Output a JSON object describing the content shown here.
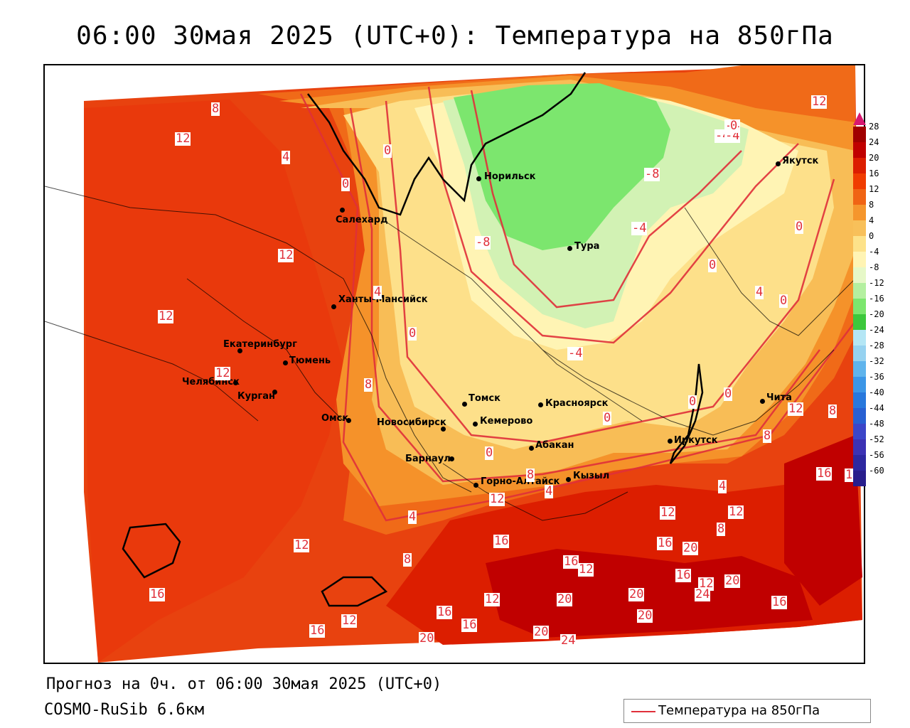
{
  "title": "06:00 30мая 2025 (UTC+0): Температура на 850гПа",
  "footer": {
    "forecast": "Прогноз на 0ч. от 06:00 30мая 2025 (UTC+0)",
    "model": "COSMO-RuSib 6.6км"
  },
  "legend": {
    "label": "Температура на 850гПа",
    "line_color": "#e0303a"
  },
  "colorbar": {
    "ticks": [
      "28",
      "24",
      "20",
      "16",
      "12",
      "8",
      "4",
      "0",
      "-4",
      "-8",
      "-12",
      "-16",
      "-20",
      "-24",
      "-28",
      "-32",
      "-36",
      "-40",
      "-44",
      "-48",
      "-52",
      "-56",
      "-60"
    ],
    "colors": [
      "#a00000",
      "#c00000",
      "#dc1e00",
      "#f03c00",
      "#f06414",
      "#f5962d",
      "#f8c05a",
      "#fde28a",
      "#fff4b4",
      "#e6f8c8",
      "#b4f0a0",
      "#7ce66e",
      "#3cc83c",
      "#b4e6f5",
      "#96d2f0",
      "#5fb4ec",
      "#3c96e6",
      "#2878dc",
      "#2860d2",
      "#3c46c8",
      "#3c32b4",
      "#2d28a0",
      "#281e8c"
    ]
  },
  "cities": [
    {
      "name": "Норильск"
    },
    {
      "name": "Якутск"
    },
    {
      "name": "Салехард"
    },
    {
      "name": "Тура"
    },
    {
      "name": "Ханты-Мансийск"
    },
    {
      "name": "Екатеринбург"
    },
    {
      "name": "Тюмень"
    },
    {
      "name": "Челябинск"
    },
    {
      "name": "Курган"
    },
    {
      "name": "Омск"
    },
    {
      "name": "Новосибирск"
    },
    {
      "name": "Томск"
    },
    {
      "name": "Кемерово"
    },
    {
      "name": "Красноярск"
    },
    {
      "name": "Абакан"
    },
    {
      "name": "Барнаул"
    },
    {
      "name": "Горно-Алтайск"
    },
    {
      "name": "Кызыл"
    },
    {
      "name": "Иркутск"
    },
    {
      "name": "Чита"
    }
  ],
  "isolines": [
    "8",
    "12",
    "4",
    "0",
    "-4",
    "-4",
    "-8",
    "12",
    "-4",
    "-8",
    "-4",
    "0",
    "12",
    "4",
    "12",
    "0",
    "0",
    "-4",
    "0",
    "8",
    "12",
    "0",
    "0",
    "0",
    "4",
    "0",
    "0",
    "8",
    "12",
    "8",
    "0",
    "12",
    "4",
    "8",
    "4",
    "12",
    "16",
    "4",
    "8",
    "12",
    "8",
    "12",
    "16",
    "16",
    "20",
    "12",
    "16",
    "16",
    "12",
    "20",
    "12",
    "12",
    "16",
    "16",
    "20",
    "20",
    "24",
    "16",
    "20",
    "20",
    "24",
    "16",
    "16",
    "20",
    "12"
  ]
}
